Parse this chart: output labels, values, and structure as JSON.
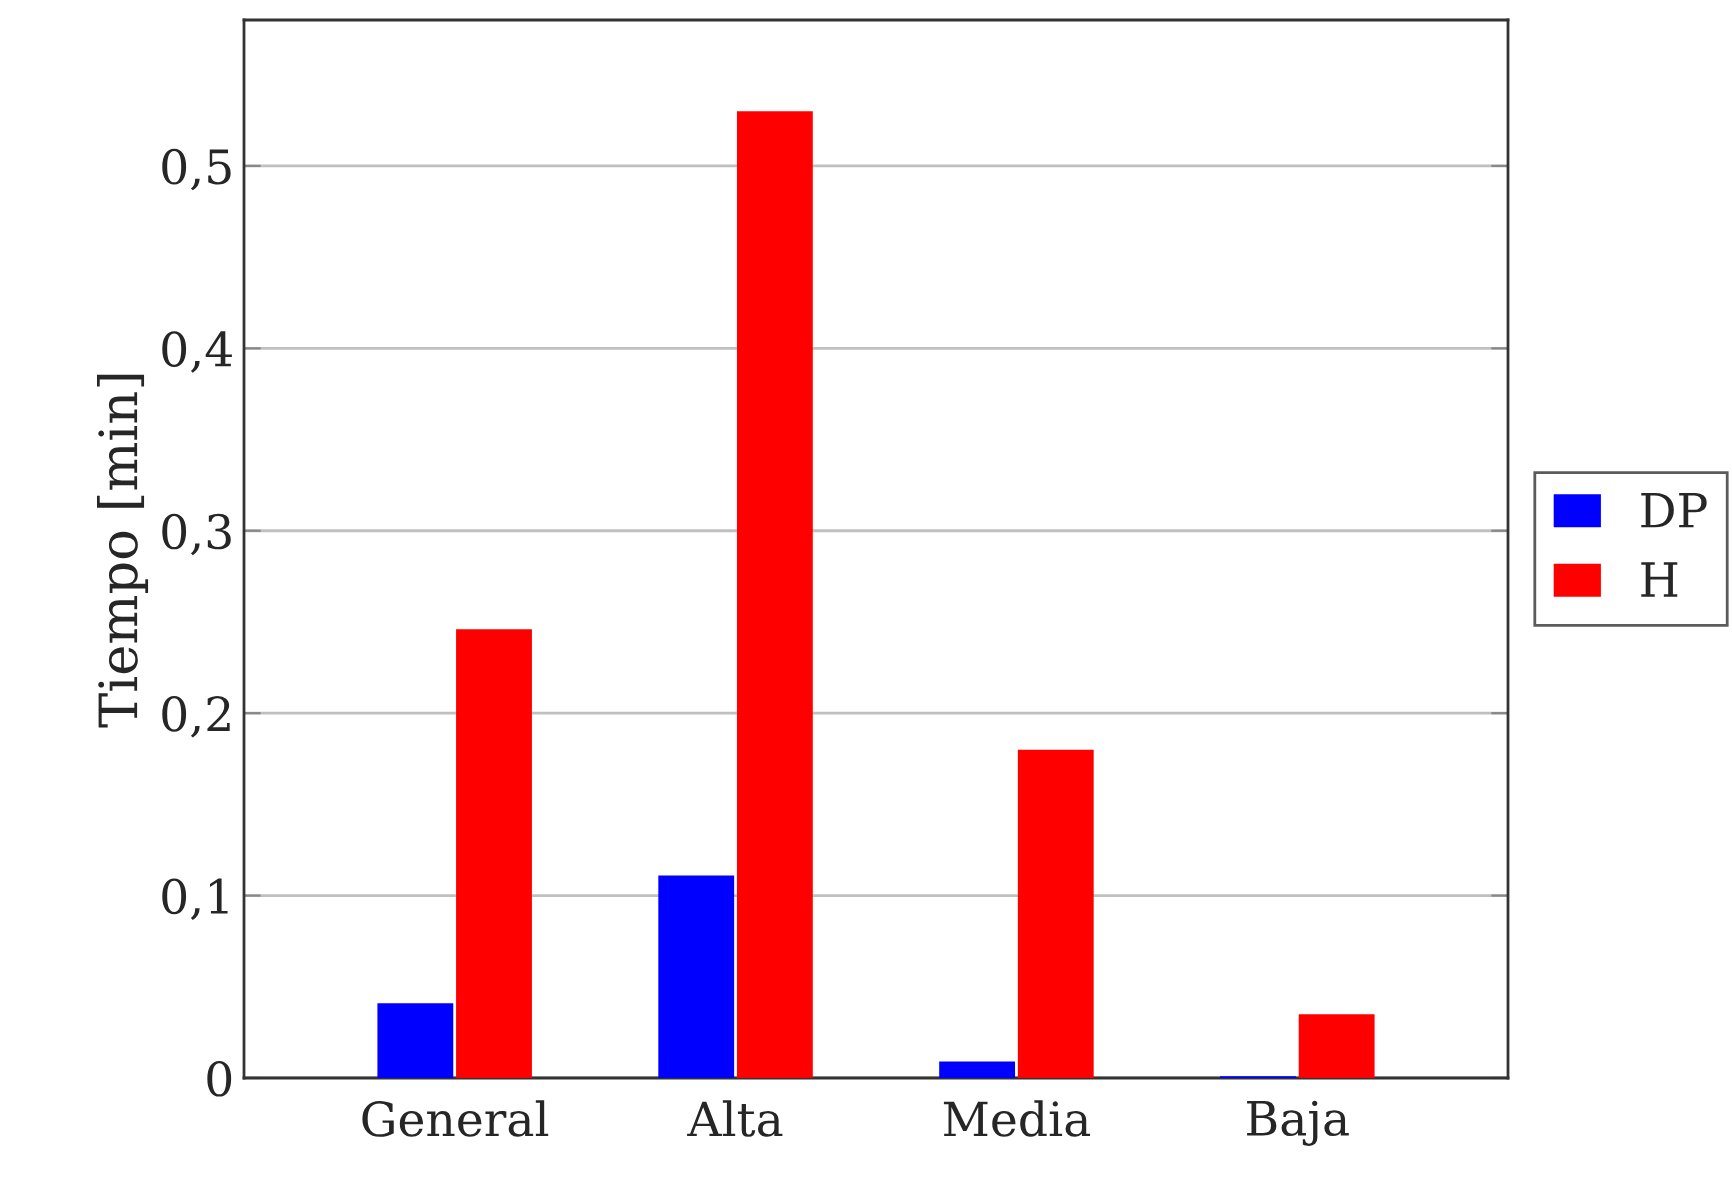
{
  "chart_data": {
    "type": "bar",
    "ylabel": "Tiempo [min]",
    "categories": [
      "General",
      "Alta",
      "Media",
      "Baja"
    ],
    "series": [
      {
        "name": "DP",
        "color": "#0000ff",
        "values": [
          0.041,
          0.111,
          0.009,
          0.001
        ]
      },
      {
        "name": "H",
        "color": "#ff0000",
        "values": [
          0.246,
          0.53,
          0.18,
          0.035
        ]
      }
    ],
    "ylim": [
      0,
      0.58
    ],
    "yticks": [
      0,
      {
        "value": 0.1,
        "label": "0,1"
      },
      {
        "value": 0.2,
        "label": "0,2"
      },
      {
        "value": 0.3,
        "label": "0,3"
      },
      {
        "value": 0.4,
        "label": "0,4"
      },
      {
        "value": 0.5,
        "label": "0,5"
      }
    ],
    "grid": "y",
    "legend": "right"
  }
}
